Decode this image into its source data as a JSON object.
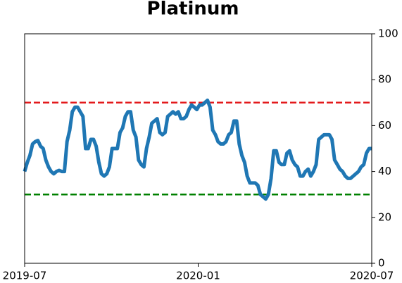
{
  "chart_data": {
    "type": "line",
    "title": "Platinum",
    "series": [
      {
        "name": "Platinum",
        "color": "#1f77b4",
        "values": [
          40,
          44,
          47,
          52,
          53,
          53.5,
          51,
          50,
          45,
          42,
          40,
          39,
          40,
          40.5,
          40,
          40,
          53,
          58,
          66,
          68,
          68,
          66,
          64,
          50,
          50,
          54,
          54,
          51,
          44,
          39,
          38,
          39,
          42,
          50,
          50,
          50,
          57,
          59,
          64,
          66,
          66,
          58,
          55,
          45,
          43,
          42,
          50,
          55,
          61,
          62,
          63,
          57,
          56,
          57,
          64,
          65,
          66,
          65,
          66,
          63,
          63,
          64,
          67,
          69,
          68,
          67,
          69,
          69,
          70,
          71,
          68,
          58,
          56,
          53,
          52,
          52,
          53,
          56,
          57,
          62,
          62,
          52,
          47,
          44,
          38,
          35,
          35,
          35,
          34,
          30,
          29,
          28,
          30,
          37,
          49,
          49,
          44,
          43,
          43,
          48,
          49,
          45,
          43,
          42,
          38,
          38,
          40,
          41,
          38,
          40,
          43,
          54,
          55,
          56,
          56,
          56,
          54,
          45,
          43,
          41,
          40,
          38,
          37,
          37,
          38,
          39,
          40,
          42,
          43,
          48,
          50,
          50
        ]
      }
    ],
    "xlim": [
      "2019-07",
      "2020-07"
    ],
    "xticks": [
      "2019-07",
      "2020-01",
      "2020-07"
    ],
    "ylim": [
      0,
      100
    ],
    "yticks": [
      0,
      20,
      40,
      60,
      80,
      100
    ],
    "hlines": [
      {
        "value": 70,
        "color": "#e31a1c"
      },
      {
        "value": 30,
        "color": "#008000"
      }
    ]
  }
}
